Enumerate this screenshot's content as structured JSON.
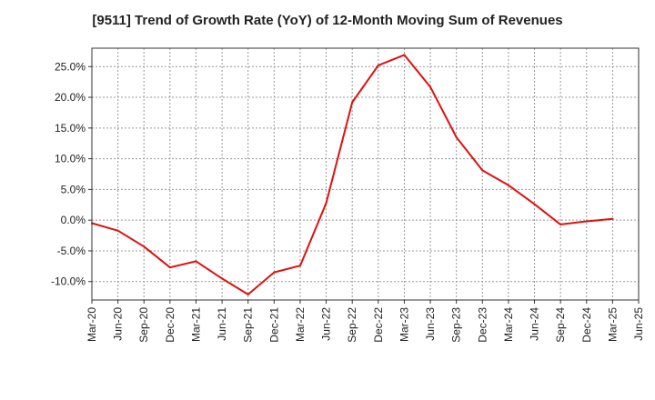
{
  "chart_data": {
    "type": "line",
    "title": "[9511]  Trend of Growth Rate (YoY) of 12-Month Moving Sum of Revenues",
    "xlabel": "",
    "ylabel": "",
    "categories": [
      "Mar-20",
      "Jun-20",
      "Sep-20",
      "Dec-20",
      "Mar-21",
      "Jun-21",
      "Sep-21",
      "Dec-21",
      "Mar-22",
      "Jun-22",
      "Sep-22",
      "Dec-22",
      "Mar-23",
      "Jun-23",
      "Sep-23",
      "Dec-23",
      "Mar-24",
      "Jun-24",
      "Sep-24",
      "Dec-24",
      "Mar-25",
      "Jun-25"
    ],
    "series": [
      {
        "color": "#dd1111",
        "values": [
          -0.5,
          -1.7,
          -4.3,
          -7.7,
          -6.7,
          -9.5,
          -12.1,
          -8.5,
          -7.4,
          2.8,
          19.2,
          25.2,
          26.9,
          21.7,
          13.5,
          8.1,
          5.7,
          2.6,
          -0.7,
          -0.2,
          0.2,
          null
        ]
      }
    ],
    "ylim": [
      -13,
      28
    ],
    "yticks": [
      -10,
      -5,
      0,
      5,
      10,
      15,
      20,
      25
    ],
    "ytick_labels": [
      "-10.0%",
      "-5.0%",
      "0.0%",
      "5.0%",
      "10.0%",
      "15.0%",
      "20.0%",
      "25.0%"
    ],
    "grid": true,
    "grid_style": "dotted",
    "legend": "none"
  }
}
